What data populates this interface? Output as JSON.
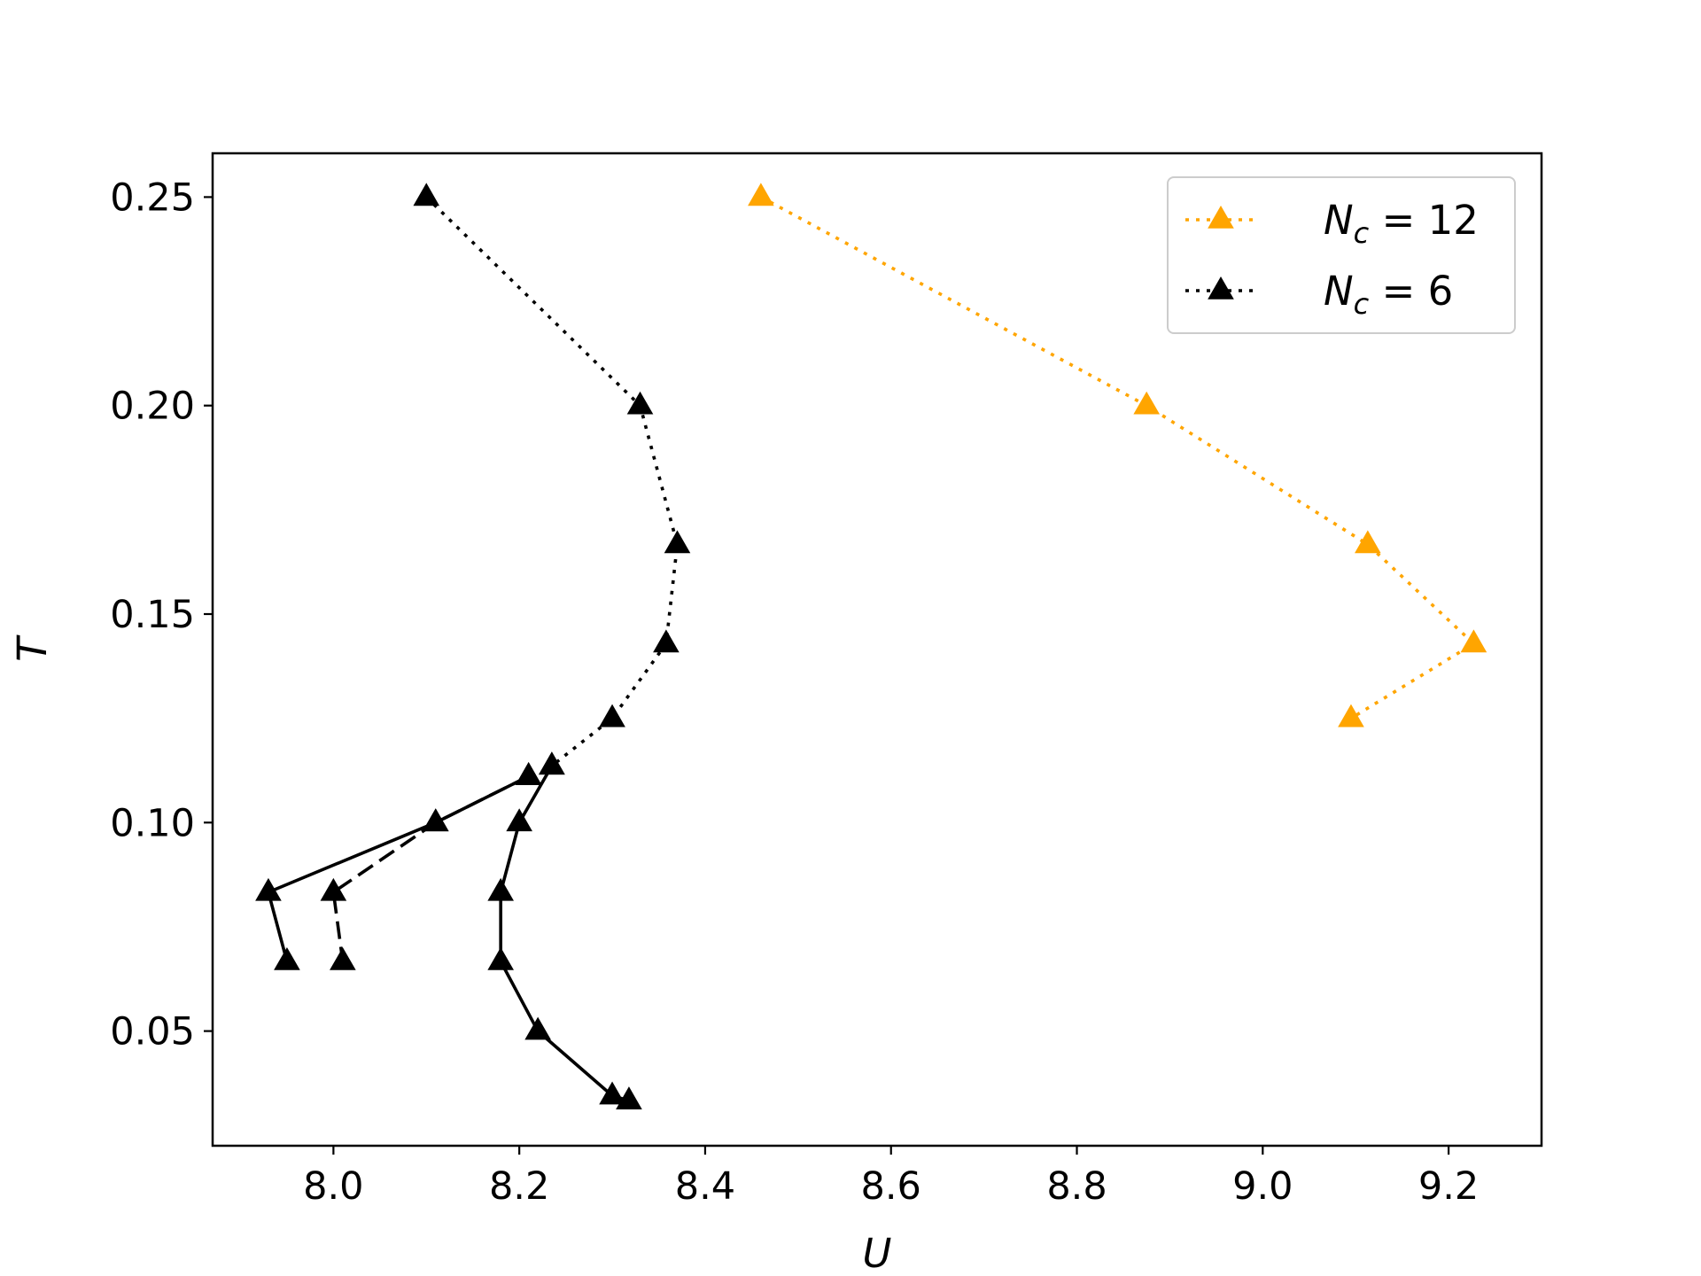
{
  "chart_data": {
    "type": "line",
    "xlabel": "U",
    "ylabel": "T",
    "xlim": [
      7.87,
      9.3
    ],
    "ylim": [
      0.0225,
      0.2605
    ],
    "xticks": [
      "8.0",
      "8.2",
      "8.4",
      "8.6",
      "8.8",
      "9.0",
      "9.2"
    ],
    "yticks": [
      "0.05",
      "0.10",
      "0.15",
      "0.20",
      "0.25"
    ],
    "legend_position": "top-right",
    "legend": [
      {
        "var": "N",
        "sub": "c",
        "rest": " = 12",
        "series_style": "dotted",
        "color": "#ffa500"
      },
      {
        "var": "N",
        "sub": "c",
        "rest": " = 6",
        "series_style": "dotted",
        "color": "#000000"
      }
    ],
    "series": [
      {
        "color": "#ffa500",
        "style": "dotted",
        "marker": "triangle",
        "points": [
          [
            8.46,
            0.25
          ],
          [
            8.875,
            0.2
          ],
          [
            9.113,
            0.1667
          ],
          [
            9.227,
            0.1429
          ],
          [
            9.095,
            0.125
          ]
        ]
      },
      {
        "color": "#000000",
        "style": "dotted",
        "marker": "triangle",
        "points": [
          [
            8.1,
            0.25
          ],
          [
            8.33,
            0.2
          ],
          [
            8.37,
            0.1667
          ],
          [
            8.358,
            0.1429
          ],
          [
            8.3,
            0.125
          ],
          [
            8.235,
            0.1136
          ]
        ]
      },
      {
        "color": "#000000",
        "style": "solid",
        "marker": "triangle",
        "points": [
          [
            8.21,
            0.1111
          ],
          [
            8.11,
            0.1
          ],
          [
            7.93,
            0.0833
          ],
          [
            7.95,
            0.0667
          ]
        ]
      },
      {
        "color": "#000000",
        "style": "dashed",
        "marker": "triangle",
        "points": [
          [
            8.21,
            0.1111
          ],
          [
            8.11,
            0.1
          ],
          [
            8.0,
            0.0833
          ],
          [
            8.01,
            0.0667
          ]
        ]
      },
      {
        "color": "#000000",
        "style": "solid",
        "marker": "triangle",
        "points": [
          [
            8.235,
            0.1136
          ],
          [
            8.2,
            0.1
          ],
          [
            8.18,
            0.0833
          ],
          [
            8.18,
            0.0667
          ],
          [
            8.22,
            0.05
          ],
          [
            8.3,
            0.0345
          ],
          [
            8.318,
            0.0333
          ]
        ]
      }
    ]
  }
}
